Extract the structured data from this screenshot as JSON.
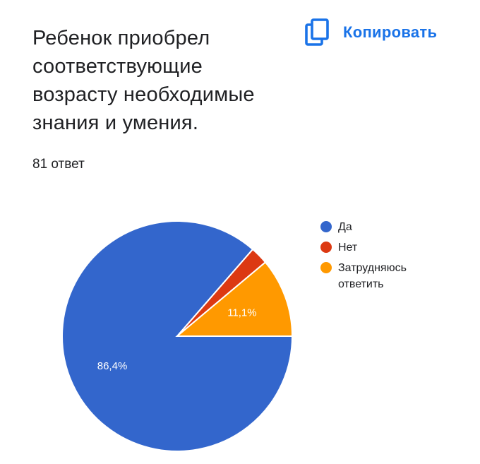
{
  "question": {
    "title": "Ребенок приобрел соответствующие возрасту необходимые знания и умения.",
    "response_count": "81 ответ"
  },
  "toolbar": {
    "copy_label": "Копировать",
    "copy_icon": "copy-icon",
    "accent_color": "#1a73e8"
  },
  "chart_data": {
    "type": "pie",
    "title": "Ребенок приобрел соответствующие возрасту необходимые знания и умения.",
    "total_responses": 81,
    "categories": [
      "Да",
      "Нет",
      "Затрудняюсь ответить"
    ],
    "values": [
      86.4,
      2.5,
      11.1
    ],
    "value_labels": [
      "86,4%",
      "",
      "11,1%"
    ],
    "colors": [
      "#3366cc",
      "#dc3912",
      "#ff9900"
    ],
    "legend_position": "right"
  }
}
